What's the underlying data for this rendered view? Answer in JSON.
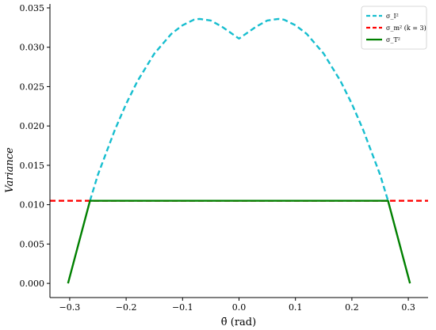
{
  "chart_data": {
    "type": "line",
    "xlabel": "θ̄ (rad)",
    "ylabel": "Variance",
    "xlim": [
      -0.335,
      0.335
    ],
    "ylim": [
      -0.0018,
      0.0355
    ],
    "xticks": [
      -0.3,
      -0.2,
      -0.1,
      0.0,
      0.1,
      0.2,
      0.3
    ],
    "xtick_labels": [
      "−0.3",
      "−0.2",
      "−0.1",
      "0.0",
      "0.1",
      "0.2",
      "0.3"
    ],
    "yticks": [
      0.0,
      0.005,
      0.01,
      0.015,
      0.02,
      0.025,
      0.03,
      0.035
    ],
    "ytick_labels": [
      "0.000",
      "0.005",
      "0.010",
      "0.015",
      "0.020",
      "0.025",
      "0.030",
      "0.035"
    ],
    "grid": false,
    "legend_position": "top-right",
    "series": [
      {
        "name": "σ_I²",
        "color": "#17becf",
        "style": "dashed",
        "x": [
          -0.264,
          -0.25,
          -0.22,
          -0.2,
          -0.18,
          -0.15,
          -0.12,
          -0.1,
          -0.08,
          -0.07,
          -0.05,
          -0.03,
          -0.01,
          0.0,
          0.01,
          0.03,
          0.05,
          0.07,
          0.08,
          0.1,
          0.12,
          0.15,
          0.18,
          0.2,
          0.22,
          0.25,
          0.264
        ],
        "y": [
          0.0105,
          0.0138,
          0.0195,
          0.0228,
          0.0257,
          0.0292,
          0.0317,
          0.0328,
          0.0335,
          0.0336,
          0.0334,
          0.0326,
          0.0316,
          0.0311,
          0.0316,
          0.0326,
          0.0334,
          0.0336,
          0.0335,
          0.0328,
          0.0317,
          0.0292,
          0.0257,
          0.0228,
          0.0195,
          0.0138,
          0.0105
        ]
      },
      {
        "name": "σ_m² (k = 3)",
        "color": "#ff0000",
        "style": "dashed",
        "x": [
          -0.335,
          0.335
        ],
        "y": [
          0.0105,
          0.0105
        ]
      },
      {
        "name": "σ_T²",
        "color": "#008000",
        "style": "solid",
        "x": [
          -0.303,
          -0.264,
          0.264,
          0.303
        ],
        "y": [
          0.0,
          0.0105,
          0.0105,
          0.0
        ]
      }
    ]
  }
}
